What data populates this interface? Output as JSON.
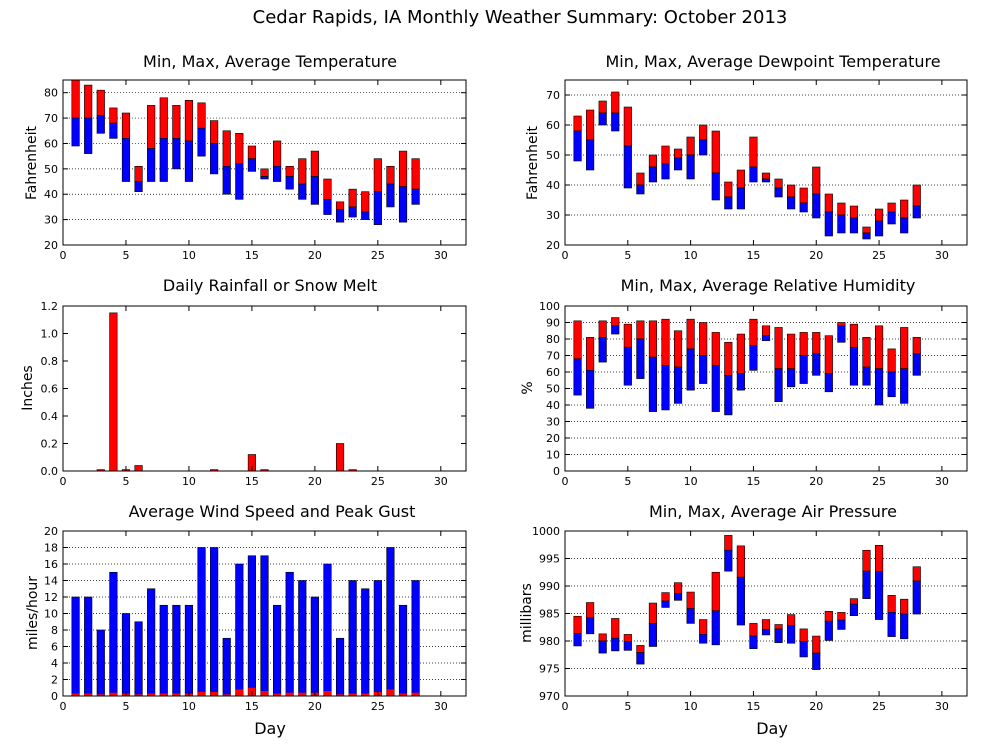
{
  "title": "Cedar Rapids, IA Monthly Weather Summary: October 2013",
  "colors": {
    "upper": "#ff0000",
    "lower": "#0000ff",
    "border": "#000000",
    "grid": "#000000"
  },
  "x_ticks": [
    0,
    5,
    10,
    15,
    20,
    25,
    30
  ],
  "chart_data": [
    {
      "id": "temp",
      "type": "bar",
      "title": "Min, Max, Average Temperature",
      "xlabel": "",
      "ylabel": "Fahrenheit",
      "xlim": [
        0,
        32
      ],
      "ylim": [
        20,
        85
      ],
      "y_ticks": [
        20,
        30,
        40,
        50,
        60,
        70,
        80
      ],
      "grid": true,
      "days": [
        1,
        2,
        3,
        4,
        5,
        6,
        7,
        8,
        9,
        10,
        11,
        12,
        13,
        14,
        15,
        16,
        17,
        18,
        19,
        20,
        21,
        22,
        23,
        24,
        25,
        26,
        27,
        28
      ],
      "series": [
        {
          "name": "max",
          "values": [
            85,
            83,
            81,
            74,
            72,
            51,
            75,
            78,
            75,
            77,
            76,
            69,
            65,
            64,
            59,
            50,
            61,
            51,
            54,
            57,
            46,
            37,
            42,
            41,
            54,
            51,
            57,
            54
          ]
        },
        {
          "name": "average",
          "values": [
            70,
            70,
            71,
            68,
            62,
            45,
            58,
            62,
            62,
            61,
            66,
            60,
            51,
            52,
            54,
            47,
            51,
            47,
            44,
            47,
            38,
            34,
            35,
            33,
            41,
            44,
            43,
            42
          ]
        },
        {
          "name": "min",
          "values": [
            59,
            56,
            64,
            62,
            45,
            41,
            45,
            45,
            50,
            45,
            55,
            48,
            40,
            38,
            49,
            46,
            45,
            42,
            38,
            36,
            32,
            29,
            31,
            30,
            28,
            35,
            29,
            36
          ]
        }
      ]
    },
    {
      "id": "dew",
      "type": "bar",
      "title": "Min, Max, Average Dewpoint Temperature",
      "xlabel": "",
      "ylabel": "Fahrenheit",
      "xlim": [
        0,
        32
      ],
      "ylim": [
        20,
        75
      ],
      "y_ticks": [
        20,
        30,
        40,
        50,
        60,
        70
      ],
      "grid": true,
      "days": [
        1,
        2,
        3,
        4,
        5,
        6,
        7,
        8,
        9,
        10,
        11,
        12,
        13,
        14,
        15,
        16,
        17,
        18,
        19,
        20,
        21,
        22,
        23,
        24,
        25,
        26,
        27,
        28
      ],
      "series": [
        {
          "name": "max",
          "values": [
            63,
            65,
            68,
            71,
            66,
            44,
            50,
            53,
            52,
            56,
            60,
            58,
            41,
            45,
            56,
            44,
            42,
            40,
            39,
            46,
            37,
            34,
            33,
            26,
            32,
            34,
            35,
            40
          ]
        },
        {
          "name": "average",
          "values": [
            58,
            55,
            64,
            64,
            53,
            40,
            46,
            47,
            49,
            50,
            55,
            44,
            36,
            39,
            46,
            42,
            39,
            36,
            34,
            37,
            31,
            30,
            29,
            24,
            28,
            31,
            29,
            33
          ]
        },
        {
          "name": "min",
          "values": [
            48,
            45,
            60,
            58,
            39,
            37,
            41,
            42,
            45,
            42,
            50,
            35,
            32,
            32,
            41,
            41,
            36,
            32,
            31,
            29,
            23,
            24,
            24,
            22,
            23,
            27,
            24,
            29
          ]
        }
      ]
    },
    {
      "id": "rain",
      "type": "bar",
      "title": "Daily Rainfall or Snow Melt",
      "xlabel": "",
      "ylabel": "Inches",
      "xlim": [
        0,
        32
      ],
      "ylim": [
        0,
        1.2
      ],
      "y_ticks": [
        0.0,
        0.2,
        0.4,
        0.6,
        0.8,
        1.0,
        1.2
      ],
      "y_tick_labels": [
        "0.0",
        "0.2",
        "0.4",
        "0.6",
        "0.8",
        "1.0",
        "1.2"
      ],
      "grid": false,
      "days": [
        3,
        4,
        5,
        6,
        12,
        15,
        16,
        22,
        23
      ],
      "values": [
        0.01,
        1.15,
        0.01,
        0.04,
        0.01,
        0.12,
        0.01,
        0.2,
        0.01
      ]
    },
    {
      "id": "rh",
      "type": "bar",
      "title": "Min, Max, Average Relative Humidity",
      "xlabel": "",
      "ylabel": "%",
      "xlim": [
        0,
        32
      ],
      "ylim": [
        0,
        100
      ],
      "y_ticks": [
        0,
        10,
        20,
        30,
        40,
        50,
        60,
        70,
        80,
        90,
        100
      ],
      "grid": true,
      "days": [
        1,
        2,
        3,
        4,
        5,
        6,
        7,
        8,
        9,
        10,
        11,
        12,
        13,
        14,
        15,
        16,
        17,
        18,
        19,
        20,
        21,
        22,
        23,
        24,
        25,
        26,
        27,
        28
      ],
      "series": [
        {
          "name": "max",
          "values": [
            91,
            81,
            91,
            93,
            89,
            91,
            91,
            92,
            85,
            92,
            90,
            84,
            78,
            83,
            92,
            88,
            87,
            83,
            84,
            84,
            82,
            90,
            89,
            81,
            88,
            74,
            87,
            81
          ]
        },
        {
          "name": "average",
          "values": [
            68,
            61,
            81,
            88,
            75,
            80,
            69,
            64,
            63,
            74,
            70,
            64,
            58,
            59,
            76,
            82,
            62,
            62,
            70,
            71,
            59,
            88,
            75,
            63,
            62,
            60,
            62,
            71
          ]
        },
        {
          "name": "min",
          "values": [
            46,
            38,
            66,
            83,
            52,
            56,
            36,
            37,
            41,
            49,
            53,
            36,
            34,
            49,
            61,
            79,
            42,
            51,
            53,
            58,
            48,
            78,
            52,
            52,
            40,
            45,
            41,
            58
          ]
        }
      ]
    },
    {
      "id": "wind",
      "type": "bar",
      "title": "Average Wind Speed and Peak Gust",
      "xlabel": "Day",
      "ylabel": "miles/hour",
      "xlim": [
        0,
        32
      ],
      "ylim": [
        0,
        20
      ],
      "y_ticks": [
        0,
        2,
        4,
        6,
        8,
        10,
        12,
        14,
        16,
        18,
        20
      ],
      "grid": true,
      "days": [
        1,
        2,
        3,
        4,
        5,
        6,
        7,
        8,
        9,
        10,
        11,
        12,
        13,
        14,
        15,
        16,
        17,
        18,
        19,
        20,
        21,
        22,
        23,
        24,
        25,
        26,
        27,
        28
      ],
      "series": [
        {
          "name": "peak",
          "values": [
            12,
            12,
            8,
            15,
            10,
            9,
            13,
            11,
            11,
            11,
            18,
            18,
            7,
            16,
            17,
            17,
            11,
            15,
            14,
            12,
            16,
            7,
            14,
            13,
            14,
            18,
            11,
            14
          ]
        },
        {
          "name": "average",
          "values": [
            0.3,
            0.3,
            0.2,
            0.4,
            0.3,
            0.2,
            0.3,
            0.3,
            0.3,
            0.3,
            0.5,
            0.5,
            0.2,
            0.8,
            1.0,
            0.6,
            0.3,
            0.4,
            0.4,
            0.4,
            0.6,
            0.2,
            0.3,
            0.3,
            0.5,
            0.8,
            0.3,
            0.4
          ]
        }
      ]
    },
    {
      "id": "pres",
      "type": "bar",
      "title": "Min, Max, Average Air Pressure",
      "xlabel": "Day",
      "ylabel": "millibars",
      "xlim": [
        0,
        32
      ],
      "ylim": [
        970,
        1000
      ],
      "y_ticks": [
        970,
        975,
        980,
        985,
        990,
        995,
        1000
      ],
      "grid": true,
      "days": [
        1,
        2,
        3,
        4,
        5,
        6,
        7,
        8,
        9,
        10,
        11,
        12,
        13,
        14,
        15,
        16,
        17,
        18,
        19,
        20,
        21,
        22,
        23,
        24,
        25,
        26,
        27,
        28
      ],
      "series": [
        {
          "name": "max",
          "values": [
            984.5,
            987,
            981.3,
            984.1,
            981.2,
            979.2,
            986.9,
            988.8,
            990.6,
            988.9,
            983.9,
            992.5,
            999.2,
            997.3,
            983.2,
            983.9,
            983,
            984.8,
            982.2,
            980.9,
            985.4,
            985.2,
            987.7,
            996.5,
            997.4,
            988.3,
            987.6,
            993.5
          ]
        },
        {
          "name": "average",
          "values": [
            981.4,
            984.2,
            980,
            980.5,
            979.9,
            977.9,
            983.2,
            987.3,
            988.6,
            985.9,
            981.2,
            985.5,
            996.5,
            991.6,
            980.9,
            982.1,
            982.2,
            982.8,
            979.9,
            977.8,
            983.6,
            983.8,
            986.7,
            992.7,
            992.6,
            985.2,
            984.9,
            990.9
          ]
        },
        {
          "name": "min",
          "values": [
            979.1,
            981.3,
            977.8,
            978.2,
            978.3,
            975.8,
            979,
            986.1,
            987.4,
            983.2,
            979.6,
            979.3,
            992.7,
            982.9,
            978.6,
            981.1,
            979.7,
            979.6,
            977.1,
            974.8,
            980.1,
            982.1,
            984.6,
            987.7,
            983.9,
            980.8,
            980.4,
            984.9
          ]
        }
      ]
    }
  ]
}
